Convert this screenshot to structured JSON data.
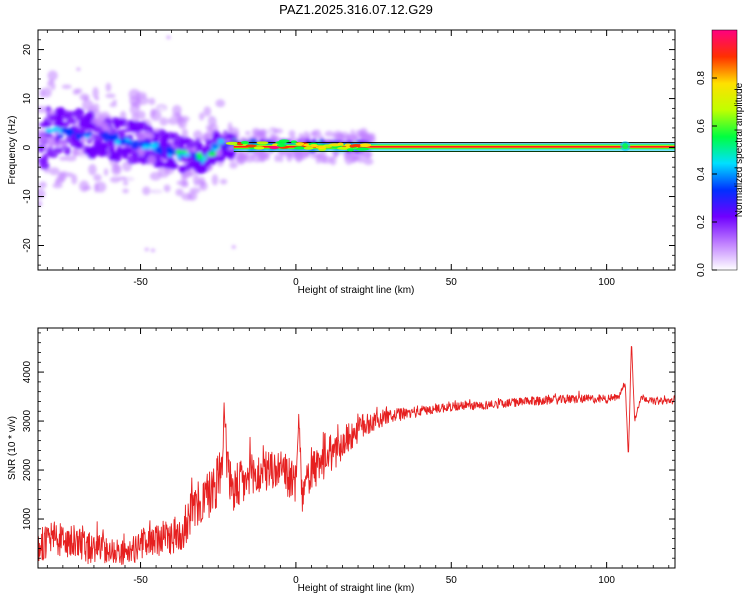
{
  "page": {
    "title": "PAZ1.2025.316.07.12.G29"
  },
  "chart_data": [
    {
      "type": "heatmap",
      "title": "PAZ1.2025.316.07.12.G29",
      "xlabel": "Height of straight line (km)",
      "ylabel": "Frequency (Hz)",
      "xlim": [
        -83,
        122
      ],
      "ylim": [
        -25,
        24
      ],
      "xticks": [
        "-50",
        "0",
        "50",
        "100"
      ],
      "xtick_values": [
        -50,
        0,
        50,
        100
      ],
      "yticks": [
        "-20",
        "-10",
        "0",
        "10",
        "20"
      ],
      "ytick_values": [
        -20,
        -10,
        0,
        10,
        20
      ],
      "colorbar": {
        "label": "Normalized spectral amplitude",
        "range": [
          0,
          1
        ],
        "ticks": [
          "0.0",
          "0.2",
          "0.4",
          "0.6",
          "0.8"
        ],
        "tick_values": [
          0,
          0.2,
          0.4,
          0.6,
          0.8
        ],
        "stops": [
          "#ffffff",
          "#c080ff",
          "#7000ff",
          "#0030ff",
          "#00e0ff",
          "#00ff40",
          "#c0ff00",
          "#ffe000",
          "#ff3000",
          "#ff0080"
        ]
      },
      "ridge": [
        {
          "x": -80,
          "f": 3.2
        },
        {
          "x": -70,
          "f": 2.8
        },
        {
          "x": -60,
          "f": 2.0
        },
        {
          "x": -50,
          "f": 0.8
        },
        {
          "x": -40,
          "f": -0.8
        },
        {
          "x": -30,
          "f": -2.2
        },
        {
          "x": -25,
          "f": 0.5
        },
        {
          "x": -20,
          "f": 0.6
        },
        {
          "x": -15,
          "f": 0.5
        },
        {
          "x": -5,
          "f": 0.7
        },
        {
          "x": 0,
          "f": 0.5
        },
        {
          "x": 10,
          "f": 0.3
        },
        {
          "x": 20,
          "f": 0.1
        },
        {
          "x": 122,
          "f": 0.1
        }
      ],
      "band_edges": [
        -0.8,
        1.0
      ]
    },
    {
      "type": "line",
      "xlabel": "Height of straight line (km)",
      "ylabel": "SNR (10 * v/v)",
      "xlim": [
        -83,
        122
      ],
      "ylim": [
        0,
        4900
      ],
      "xticks": [
        "-50",
        "0",
        "50",
        "100"
      ],
      "xtick_values": [
        -50,
        0,
        50,
        100
      ],
      "yticks": [
        "1000",
        "2000",
        "3000",
        "4000"
      ],
      "ytick_values": [
        1000,
        2000,
        3000,
        4000
      ],
      "color": "#e62020",
      "series": [
        {
          "name": "SNR",
          "x": [
            -83,
            -78,
            -73,
            -68,
            -63,
            -58,
            -55,
            -52,
            -49,
            -46,
            -43,
            -40,
            -37,
            -34,
            -31,
            -28,
            -26,
            -24,
            -23,
            -22,
            -20,
            -18,
            -15,
            -12,
            -9,
            -6,
            -3,
            0,
            1,
            2,
            4,
            8,
            12,
            16,
            20,
            25,
            30,
            35,
            40,
            50,
            60,
            70,
            80,
            90,
            100,
            104,
            106,
            107,
            108,
            109,
            111,
            115,
            122
          ],
          "y": [
            450,
            600,
            520,
            430,
            400,
            350,
            300,
            380,
            520,
            580,
            600,
            650,
            700,
            1100,
            1300,
            1500,
            1700,
            2000,
            3300,
            1900,
            1600,
            1700,
            1800,
            1900,
            2000,
            2000,
            1900,
            1700,
            3050,
            1400,
            1900,
            2100,
            2350,
            2600,
            2850,
            3000,
            3100,
            3150,
            3200,
            3300,
            3320,
            3380,
            3420,
            3450,
            3450,
            3500,
            3800,
            2200,
            4700,
            3000,
            3500,
            3400,
            3420
          ],
          "noise_amplitude": [
            350,
            350,
            350,
            350,
            300,
            250,
            250,
            280,
            300,
            320,
            350,
            380,
            400,
            450,
            500,
            520,
            550,
            580,
            300,
            500,
            500,
            500,
            500,
            450,
            450,
            420,
            420,
            400,
            200,
            300,
            420,
            400,
            380,
            330,
            300,
            200,
            150,
            120,
            110,
            100,
            90,
            90,
            90,
            90,
            90,
            60,
            60,
            60,
            60,
            60,
            70,
            70,
            70
          ]
        }
      ]
    }
  ]
}
